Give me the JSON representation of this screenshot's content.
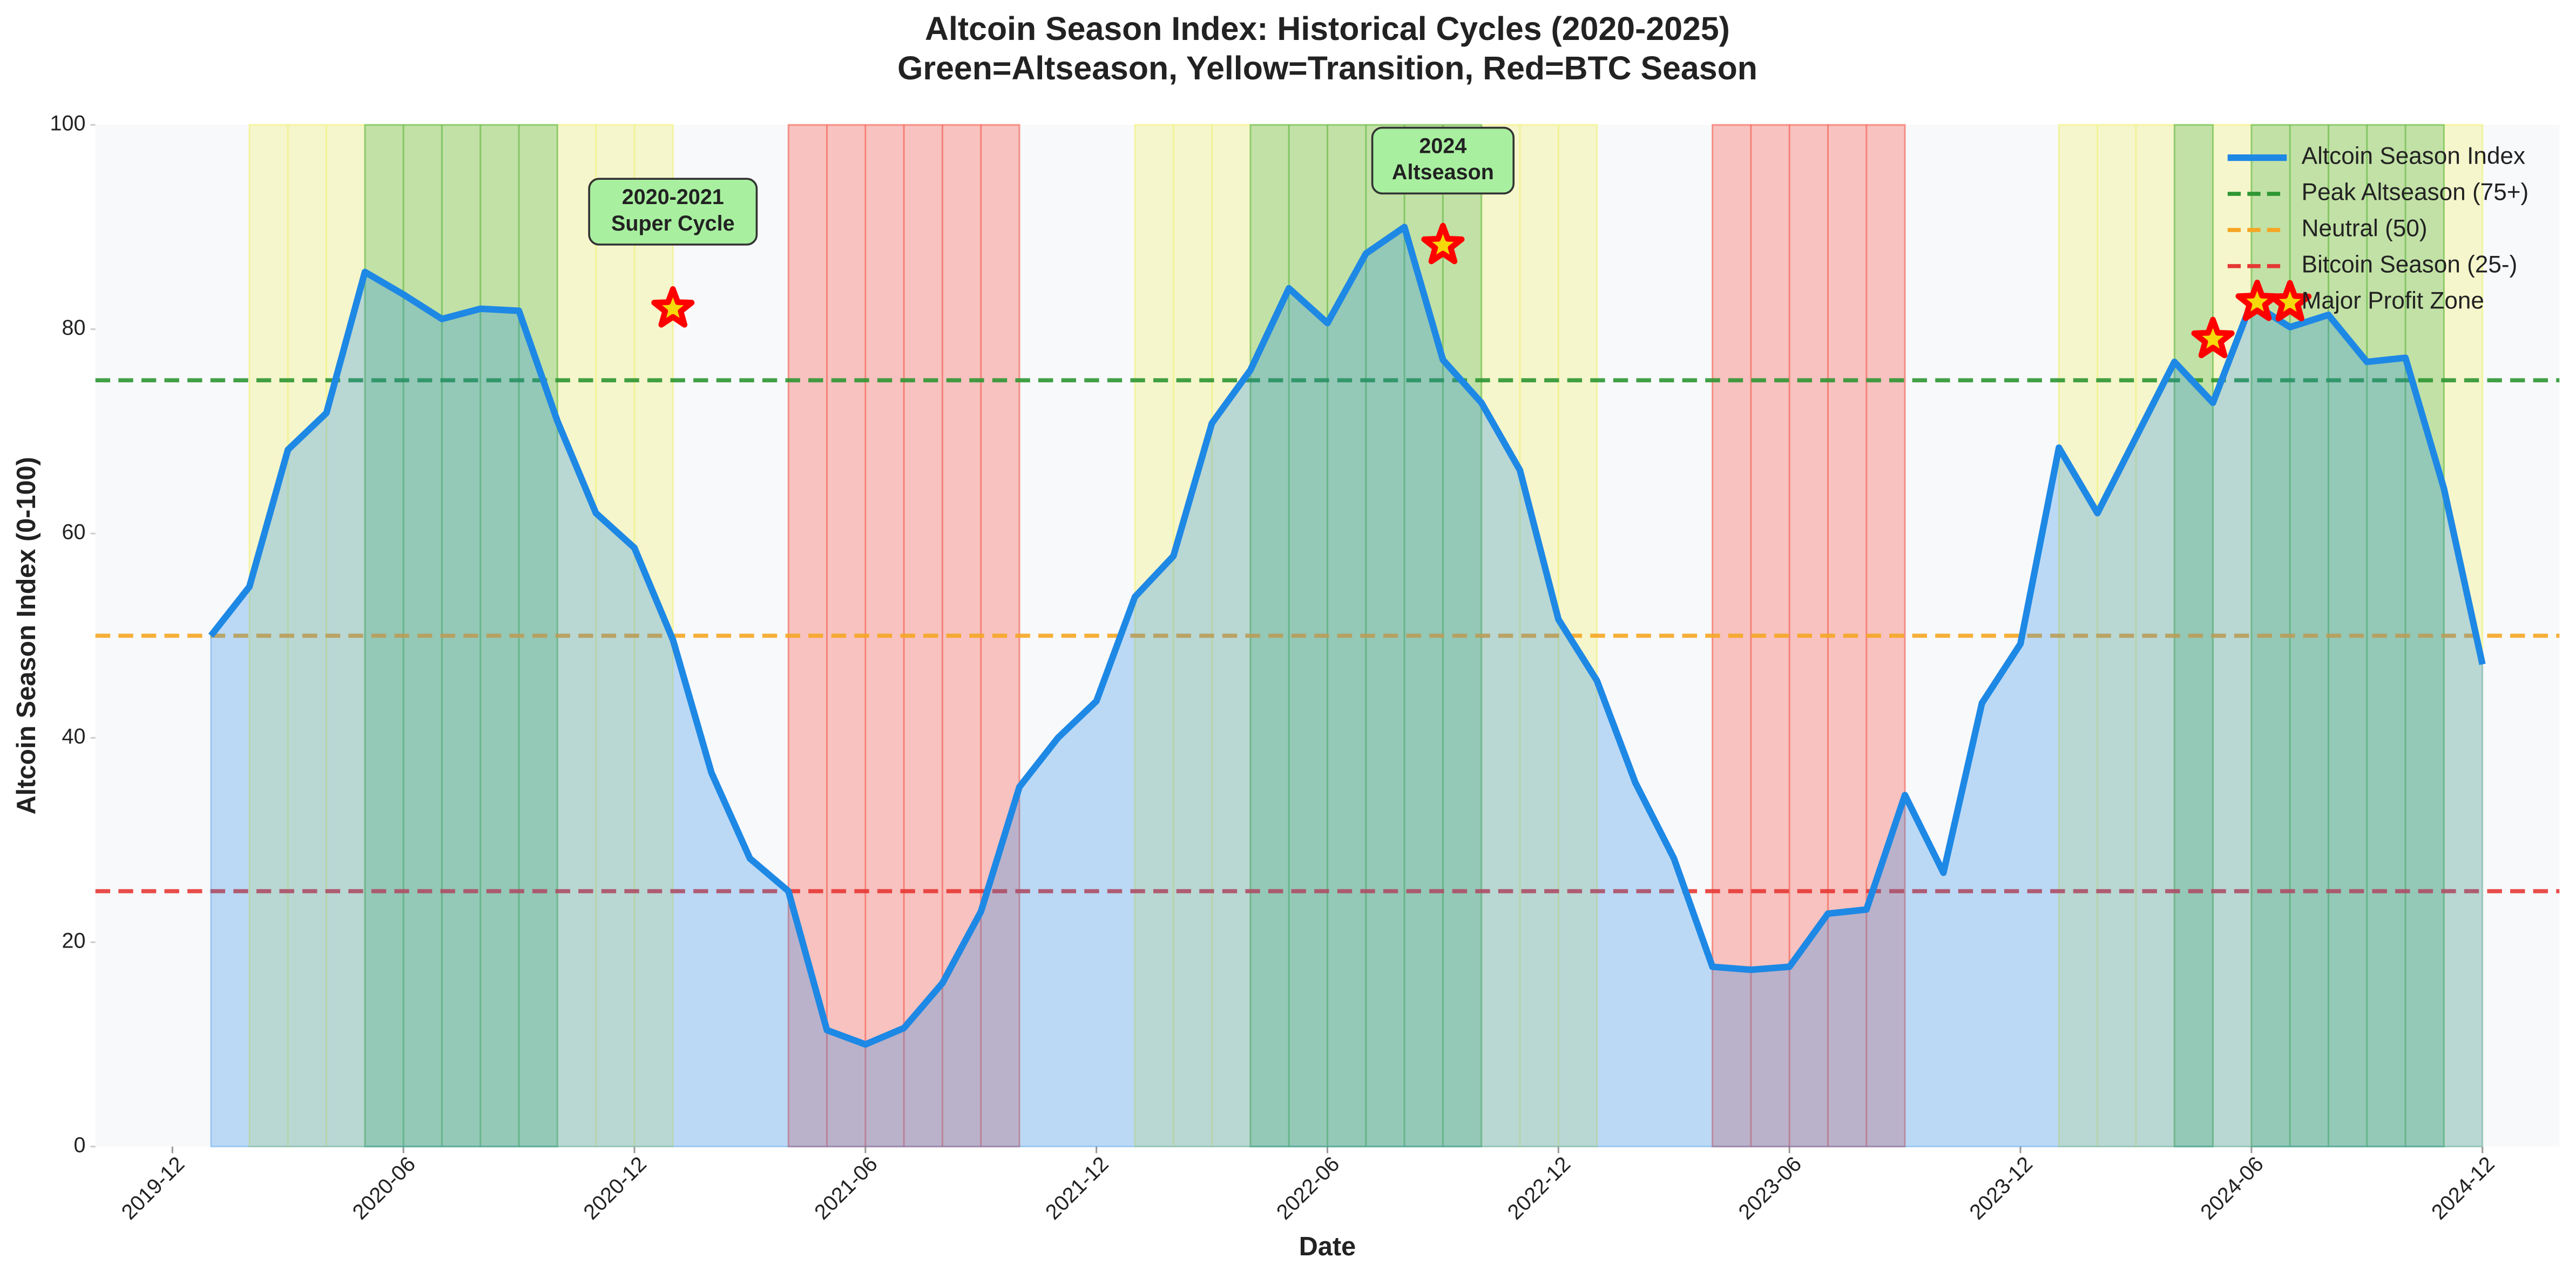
{
  "chart_data": {
    "type": "line",
    "title": "Altcoin Season Index: Historical Cycles (2020-2025)",
    "subtitle": "Green=Altseason, Yellow=Transition, Red=BTC Season",
    "x_label": "Date",
    "y_label": "Altcoin Season Index (0-100)",
    "x": [
      "2020-01",
      "2020-02",
      "2020-03",
      "2020-04",
      "2020-05",
      "2020-06",
      "2020-07",
      "2020-08",
      "2020-09",
      "2020-10",
      "2020-11",
      "2020-12",
      "2021-01",
      "2021-02",
      "2021-03",
      "2021-04",
      "2021-05",
      "2021-06",
      "2021-07",
      "2021-08",
      "2021-09",
      "2021-10",
      "2021-11",
      "2021-12",
      "2022-01",
      "2022-02",
      "2022-03",
      "2022-04",
      "2022-05",
      "2022-06",
      "2022-07",
      "2022-08",
      "2022-09",
      "2022-10",
      "2022-11",
      "2022-12",
      "2023-01",
      "2023-02",
      "2023-03",
      "2023-04",
      "2023-05",
      "2023-06",
      "2023-07",
      "2023-08",
      "2023-09",
      "2023-10",
      "2023-11",
      "2023-12",
      "2024-01",
      "2024-02",
      "2024-03",
      "2024-04",
      "2024-05",
      "2024-06",
      "2024-07",
      "2024-08",
      "2024-09",
      "2024-10",
      "2024-11",
      "2024-12"
    ],
    "series": [
      {
        "name": "Altcoin Season Index",
        "color": "#1e88e5",
        "values": [
          50,
          54.8,
          68.2,
          71.8,
          85.6,
          83.4,
          81,
          82,
          81.8,
          71,
          62,
          58.6,
          49.6,
          36.6,
          28.2,
          25,
          11.4,
          10,
          11.6,
          16,
          23,
          35.2,
          40,
          43.6,
          53.8,
          57.8,
          70.8,
          76,
          84,
          80.6,
          87.4,
          90,
          77,
          72.8,
          66.2,
          51.6,
          45.6,
          35.6,
          28.2,
          17.6,
          17.3,
          17.6,
          22.8,
          23.2,
          34.4,
          26.8,
          43.4,
          49.2,
          68.4,
          62,
          69.4,
          76.8,
          72.8,
          82.6,
          80.2,
          81.4,
          76.8,
          77.2,
          64.4,
          47.2
        ]
      }
    ],
    "reference_lines": [
      {
        "name": "Peak Altseason (75+)",
        "value": 75,
        "color": "#2e9632"
      },
      {
        "name": "Neutral (50)",
        "value": 50,
        "color": "#f5a623"
      },
      {
        "name": "Bitcoin Season (25-)",
        "value": 25,
        "color": "#e53935"
      }
    ],
    "markers": {
      "name": "Major Profit Zone",
      "color": "#ff0000",
      "x": [
        "2021-01",
        "2022-09",
        "2024-05",
        "2024-07"
      ],
      "values": [
        82,
        88.2,
        79,
        82.6
      ]
    },
    "spans": [
      {
        "start": "2020-02",
        "end": "2021-01",
        "color": "#f0f060"
      },
      {
        "start": "2020-05",
        "end": "2020-10",
        "color": "#4caf50"
      },
      {
        "start": "2021-04",
        "end": "2021-10",
        "color": "#f44336"
      },
      {
        "start": "2022-01",
        "end": "2023-01",
        "color": "#f0f060"
      },
      {
        "start": "2022-04",
        "end": "2022-10",
        "color": "#4caf50"
      },
      {
        "start": "2023-04",
        "end": "2023-09",
        "color": "#f44336"
      },
      {
        "start": "2024-01",
        "end": "2024-12",
        "color": "#f0f060"
      },
      {
        "start": "2024-04",
        "end": "2024-05",
        "color": "#4caf50"
      },
      {
        "start": "2024-06",
        "end": "2024-11",
        "color": "#4caf50"
      }
    ],
    "annotations": [
      {
        "text": [
          "2020-2021",
          "Super Cycle"
        ],
        "x": "2021-01",
        "y": 91.5
      },
      {
        "text": [
          "2024",
          "Altseason"
        ],
        "x": "2022-09",
        "y": 96.5
      }
    ],
    "xlim": [
      "2019-10",
      "2025-02"
    ],
    "xticks": [
      "2019-12",
      "2020-06",
      "2020-12",
      "2021-06",
      "2021-12",
      "2022-06",
      "2022-12",
      "2023-06",
      "2023-12",
      "2024-06",
      "2024-12"
    ],
    "ylim": [
      0,
      100
    ],
    "yticks": [
      0,
      20,
      40,
      60,
      80,
      100
    ],
    "grid": false,
    "legend": "upper right"
  }
}
